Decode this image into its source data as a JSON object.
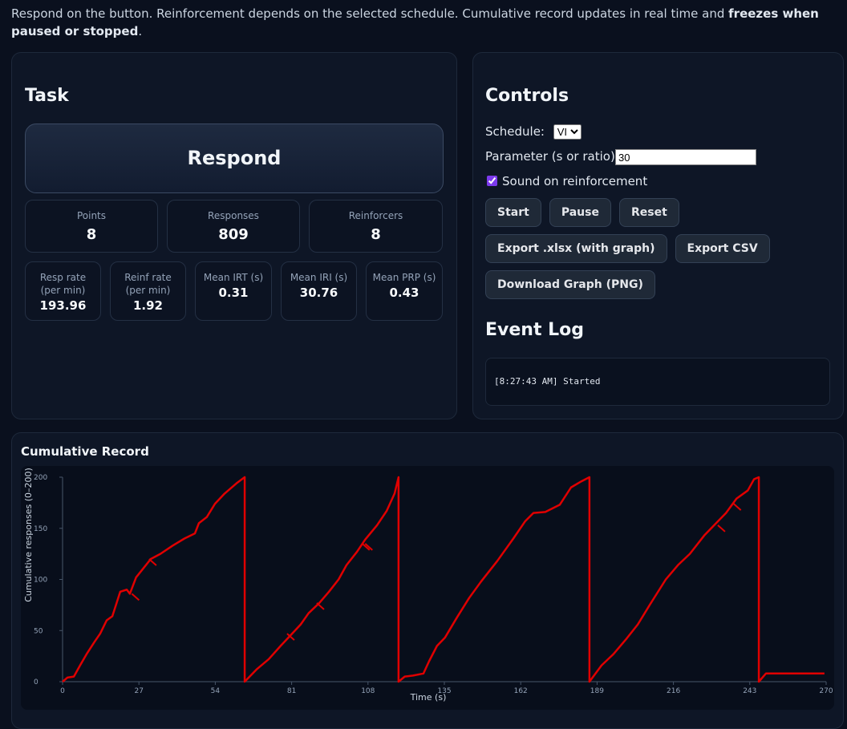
{
  "intro": {
    "text": "Respond on the button. Reinforcement depends on the selected schedule. Cumulative record updates in real time and ",
    "bold": "freezes when paused or stopped",
    "end": "."
  },
  "task": {
    "title": "Task",
    "button": "Respond",
    "stats_main": [
      {
        "label": "Points",
        "value": 8
      },
      {
        "label": "Responses",
        "value": 809
      },
      {
        "label": "Reinforcers",
        "value": 8
      }
    ],
    "stats_detail": [
      {
        "label": "Resp rate (per min)",
        "value": 193.96
      },
      {
        "label": "Reinf rate (per min)",
        "value": 1.92
      },
      {
        "label": "Mean IRT (s)",
        "value": 0.31
      },
      {
        "label": "Mean IRI (s)",
        "value": 30.76
      },
      {
        "label": "Mean PRP (s)",
        "value": 0.43
      }
    ]
  },
  "controls": {
    "title": "Controls",
    "schedule_label": "Schedule:",
    "schedule": "VI",
    "parameter_label": "Parameter (s or ratio):",
    "parameter": "30",
    "sound_label": "Sound on reinforcement",
    "buttons": [
      [
        "Start",
        "Pause",
        "Reset"
      ],
      [
        "Export .xlsx (with graph)",
        "Export CSV"
      ],
      [
        "Download Graph (PNG)"
      ]
    ]
  },
  "event_log": {
    "title": "Event Log",
    "entries": [
      "[8:27:43 AM] Started"
    ]
  },
  "chart_data": {
    "type": "line",
    "title": "Cumulative Record",
    "x_label": "Time (s)",
    "y_label": "Cumulative responses (0–200)",
    "xlim": [
      0,
      270
    ],
    "ylim": [
      0,
      200
    ],
    "xticks": [
      0,
      27,
      54,
      81,
      108,
      135,
      162,
      189,
      216,
      243,
      270
    ],
    "yticks": [
      0,
      50,
      100,
      150,
      200
    ],
    "color": "#e00000",
    "x": [
      0,
      1.7,
      4,
      6.2,
      8.5,
      11.3,
      13.3,
      15.6,
      17.6,
      20.4,
      22.7,
      23.8,
      26,
      28.9,
      31.2,
      34.6,
      38.9,
      43.1,
      46.8,
      48.2,
      51,
      53.9,
      57.3,
      61.5,
      64.4,
      64.4,
      68.6,
      72.9,
      77.1,
      80.5,
      84.2,
      87,
      90.8,
      94.2,
      97.6,
      100.4,
      104.1,
      107,
      111.2,
      114.6,
      117.4,
      118.8,
      118.8,
      121,
      123.9,
      127.6,
      129.6,
      132.4,
      135.2,
      139.5,
      143.8,
      148,
      153.7,
      159.4,
      163.6,
      166.5,
      170.7,
      175.8,
      179.8,
      183.5,
      186.3,
      186.3,
      190.6,
      194.8,
      199.1,
      203.4,
      207.6,
      213.3,
      217.6,
      221.8,
      226.9,
      230.4,
      234.6,
      238.3,
      242.3,
      244.5,
      246.2,
      246.2,
      248.7,
      269.4
    ],
    "values": [
      0,
      4,
      5,
      16,
      27,
      39,
      47,
      60,
      64,
      88,
      90,
      86,
      102,
      112,
      120,
      125,
      133,
      140,
      145,
      155,
      161,
      174,
      184,
      194,
      200,
      0,
      12,
      22,
      35,
      45,
      56,
      67,
      77,
      88,
      100,
      114,
      127,
      139,
      153,
      167,
      184,
      200,
      0,
      5,
      6,
      8,
      20,
      35,
      43,
      63,
      82,
      98,
      118,
      140,
      157,
      165,
      166,
      173,
      190,
      196,
      200,
      0,
      16,
      27,
      41,
      56,
      75,
      100,
      114,
      125,
      143,
      153,
      165,
      179,
      187,
      198,
      200,
      0,
      8,
      8
    ],
    "reinforcement_marks": {
      "x": [
        24.5,
        30.6,
        79.4,
        89.9,
        106,
        107,
        231.7,
        237.3
      ],
      "values": [
        86,
        120,
        47,
        77,
        135,
        135,
        153,
        174
      ]
    }
  }
}
